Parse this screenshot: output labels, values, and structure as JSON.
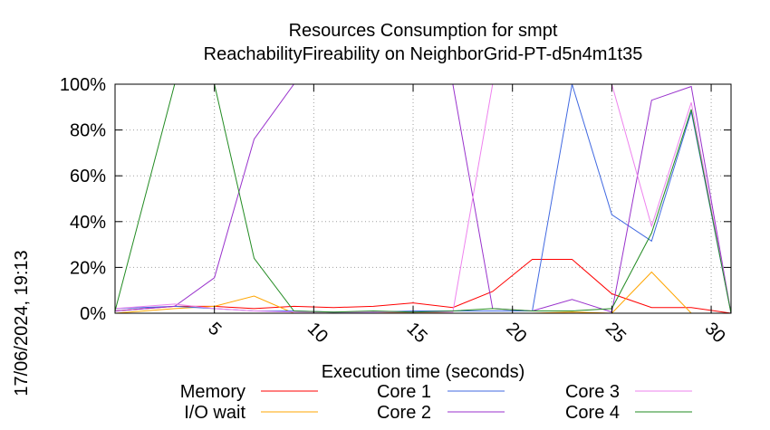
{
  "chart_data": {
    "type": "line",
    "title": [
      "Resources Consumption for smpt",
      "ReachabilityFireability on NeighborGrid-PT-d5n4m1t35"
    ],
    "xlabel": "Execution time (seconds)",
    "ylabel": "",
    "timestamp": "17/06/2024, 19:13",
    "xlim": [
      0,
      31
    ],
    "ylim": [
      0,
      100
    ],
    "xticks": [
      5,
      10,
      15,
      20,
      25,
      30
    ],
    "yticks": [
      0,
      20,
      40,
      60,
      80,
      100
    ],
    "ytick_labels": [
      "0%",
      "20%",
      "40%",
      "60%",
      "80%",
      "100%"
    ],
    "grid": true,
    "legend_position": "bottom",
    "series": [
      {
        "name": "Memory",
        "color": "#ff0000",
        "x": [
          0,
          3,
          5,
          7,
          9,
          11,
          13,
          15,
          17,
          19,
          21,
          23,
          25,
          27,
          29,
          31
        ],
        "y": [
          1,
          3,
          3,
          2,
          3,
          2.5,
          3,
          4.5,
          2.5,
          9.5,
          23.5,
          23.5,
          8.5,
          2.5,
          2.5,
          0
        ]
      },
      {
        "name": "I/O wait",
        "color": "#ffa500",
        "x": [
          0,
          3,
          5,
          7,
          9,
          11,
          13,
          15,
          17,
          19,
          21,
          23,
          25,
          27,
          29,
          31
        ],
        "y": [
          0,
          2,
          3,
          7.5,
          0,
          0,
          0,
          0.5,
          0,
          0,
          0,
          0.5,
          0,
          18,
          0,
          0
        ]
      },
      {
        "name": "Core 1",
        "color": "#4169e1",
        "x": [
          0,
          3,
          5,
          7,
          9,
          11,
          13,
          15,
          17,
          19,
          21,
          23,
          25,
          27,
          29,
          31
        ],
        "y": [
          2,
          3,
          2,
          1,
          1,
          0.5,
          0.5,
          1,
          1,
          1,
          1,
          100,
          43,
          31.5,
          88,
          0
        ]
      },
      {
        "name": "Core 2",
        "color": "#9932cc",
        "x": [
          0,
          3,
          5,
          7,
          9,
          11,
          13,
          15,
          17,
          19,
          21,
          23,
          25,
          27,
          29,
          31
        ],
        "y": [
          1,
          3,
          15.5,
          76,
          100,
          100,
          100,
          100,
          100,
          2,
          1,
          6,
          0.5,
          93,
          99,
          0
        ]
      },
      {
        "name": "Core 3",
        "color": "#ee82ee",
        "x": [
          0,
          3,
          5,
          7,
          9,
          11,
          13,
          15,
          17,
          19,
          21,
          23,
          25,
          27,
          29,
          31
        ],
        "y": [
          2,
          4,
          2,
          1,
          0.5,
          0.5,
          0.5,
          0.5,
          0.5,
          100,
          100,
          100,
          100,
          38,
          92,
          0
        ]
      },
      {
        "name": "Core 4",
        "color": "#228b22",
        "x": [
          0,
          3,
          5,
          7,
          9,
          11,
          13,
          15,
          17,
          19,
          21,
          23,
          25,
          27,
          29,
          31
        ],
        "y": [
          1,
          100,
          100,
          24,
          1,
          0.5,
          1,
          0.5,
          1,
          2,
          1,
          1,
          2,
          35,
          89,
          0
        ]
      }
    ]
  }
}
